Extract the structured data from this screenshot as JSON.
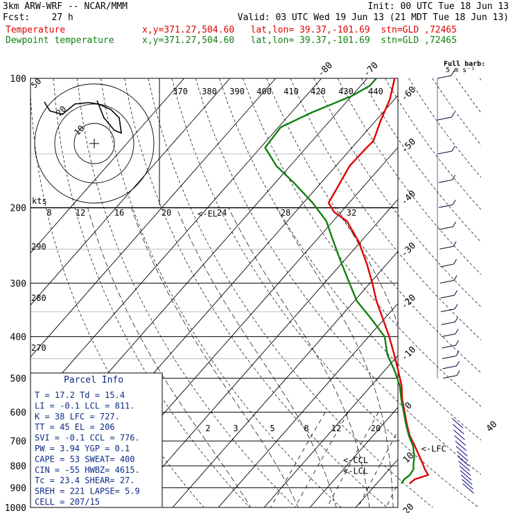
{
  "header": {
    "model": "3km ARW-WRF -- NCAR/MMM",
    "init": "Init: 00 UTC Tue 18 Jun 13",
    "fcst": "Fcst:    27 h",
    "valid": "Valid: 03 UTC Wed 19 Jun 13 (21 MDT Tue 18 Jun 13)"
  },
  "legend": {
    "temperature": {
      "label": "Temperature",
      "location": "x,y=371.27,504.60   lat,lon= 39.37,-101.69  stn=GLD ,72465",
      "color": "#e00000"
    },
    "dewpoint": {
      "label": "Dewpoint temperature",
      "location": "x,y=371.27,504.60   lat,lon= 39.37,-101.69  stn=GLD ,72465",
      "color": "#108010"
    }
  },
  "wind_key": {
    "title": "Full barb:",
    "value": "5 m s⁻¹"
  },
  "hodograph": {
    "unit": "kts",
    "ring_labels": [
      "10",
      "20",
      "30"
    ]
  },
  "parcel_info": {
    "title": "Parcel Info",
    "rows": [
      "T  =   17.2  Td =  15.4",
      "LI =   -0.1  LCL =  811.",
      "K  =     38  LFC =  727.",
      "TT =     45  EL  =  206",
      "SVI =  -0.1  CCL =  776.",
      "PW =   3.94  YGP =   0.1",
      "CAPE =   53  SWEAT=  400",
      "CIN =   -55  HWBZ= 4615.",
      "Tc =   23.4  SHEAR=  27.",
      "SREH =  221  LAPSE=  5.9",
      "CELL = 207/15"
    ]
  },
  "level_markers": [
    "<-EL",
    "<-LFC",
    "<-CCL",
    "<-LCL"
  ],
  "chart_data": {
    "type": "line",
    "title": "3km ARW-WRF -- NCAR/MMM",
    "diagram": "skew-T log-P",
    "y_axis": {
      "scale": "log",
      "ylim": [
        1000,
        100
      ],
      "ticks": [
        100,
        200,
        300,
        400,
        500,
        600,
        700,
        800,
        900,
        1000
      ]
    },
    "temperature_tick_labels": [
      "-80",
      "-70",
      "-60",
      "-50",
      "-40",
      "-30",
      "-20",
      "-10",
      "0",
      "10",
      "20",
      "30",
      "40"
    ],
    "theta_labels": [
      "370",
      "380",
      "390",
      "400",
      "410",
      "420",
      "430",
      "440"
    ],
    "mixing_ratio_labels_upper": [
      "8",
      "12",
      "16",
      "20",
      "24",
      "28",
      "32"
    ],
    "mixing_ratio_labels_lower": [
      "2",
      "3",
      "5",
      "8",
      "12",
      "20"
    ],
    "left_labels": [
      "50",
      "290",
      "280",
      "270"
    ],
    "series": [
      {
        "name": "Temperature",
        "color": "#e00000",
        "points": [
          [
            880,
            17.2
          ],
          [
            860,
            17.5
          ],
          [
            840,
            19.6
          ],
          [
            815,
            17.8
          ],
          [
            790,
            16.2
          ],
          [
            760,
            14.1
          ],
          [
            720,
            11.2
          ],
          [
            680,
            8.0
          ],
          [
            640,
            5.2
          ],
          [
            600,
            2.4
          ],
          [
            560,
            -0.6
          ],
          [
            520,
            -3.4
          ],
          [
            480,
            -7.0
          ],
          [
            440,
            -11.0
          ],
          [
            400,
            -15.5
          ],
          [
            360,
            -20.8
          ],
          [
            330,
            -25.2
          ],
          [
            300,
            -29.5
          ],
          [
            270,
            -34.5
          ],
          [
            240,
            -40.5
          ],
          [
            215,
            -47.0
          ],
          [
            205,
            -51.5
          ],
          [
            195,
            -54.5
          ],
          [
            180,
            -55.5
          ],
          [
            160,
            -57.0
          ],
          [
            145,
            -56.8
          ],
          [
            140,
            -56.6
          ],
          [
            125,
            -59.0
          ],
          [
            112,
            -61.0
          ],
          [
            100,
            -64.0
          ]
        ]
      },
      {
        "name": "Dewpoint temperature",
        "color": "#108010",
        "points": [
          [
            880,
            15.4
          ],
          [
            860,
            15.2
          ],
          [
            840,
            15.6
          ],
          [
            815,
            15.3
          ],
          [
            790,
            14.2
          ],
          [
            760,
            13.0
          ],
          [
            720,
            10.8
          ],
          [
            680,
            7.8
          ],
          [
            640,
            5.0
          ],
          [
            600,
            2.2
          ],
          [
            560,
            -0.8
          ],
          [
            520,
            -3.8
          ],
          [
            480,
            -7.8
          ],
          [
            440,
            -12.5
          ],
          [
            400,
            -16.5
          ],
          [
            360,
            -23.5
          ],
          [
            330,
            -29.5
          ],
          [
            300,
            -34.5
          ],
          [
            270,
            -40.0
          ],
          [
            240,
            -46.0
          ],
          [
            215,
            -51.5
          ],
          [
            195,
            -58.0
          ],
          [
            175,
            -66.0
          ],
          [
            160,
            -73.0
          ],
          [
            145,
            -79.0
          ],
          [
            130,
            -79.5
          ],
          [
            120,
            -75.5
          ],
          [
            110,
            -70.0
          ],
          [
            104,
            -68.0
          ],
          [
            100,
            -68.0
          ]
        ]
      }
    ]
  }
}
